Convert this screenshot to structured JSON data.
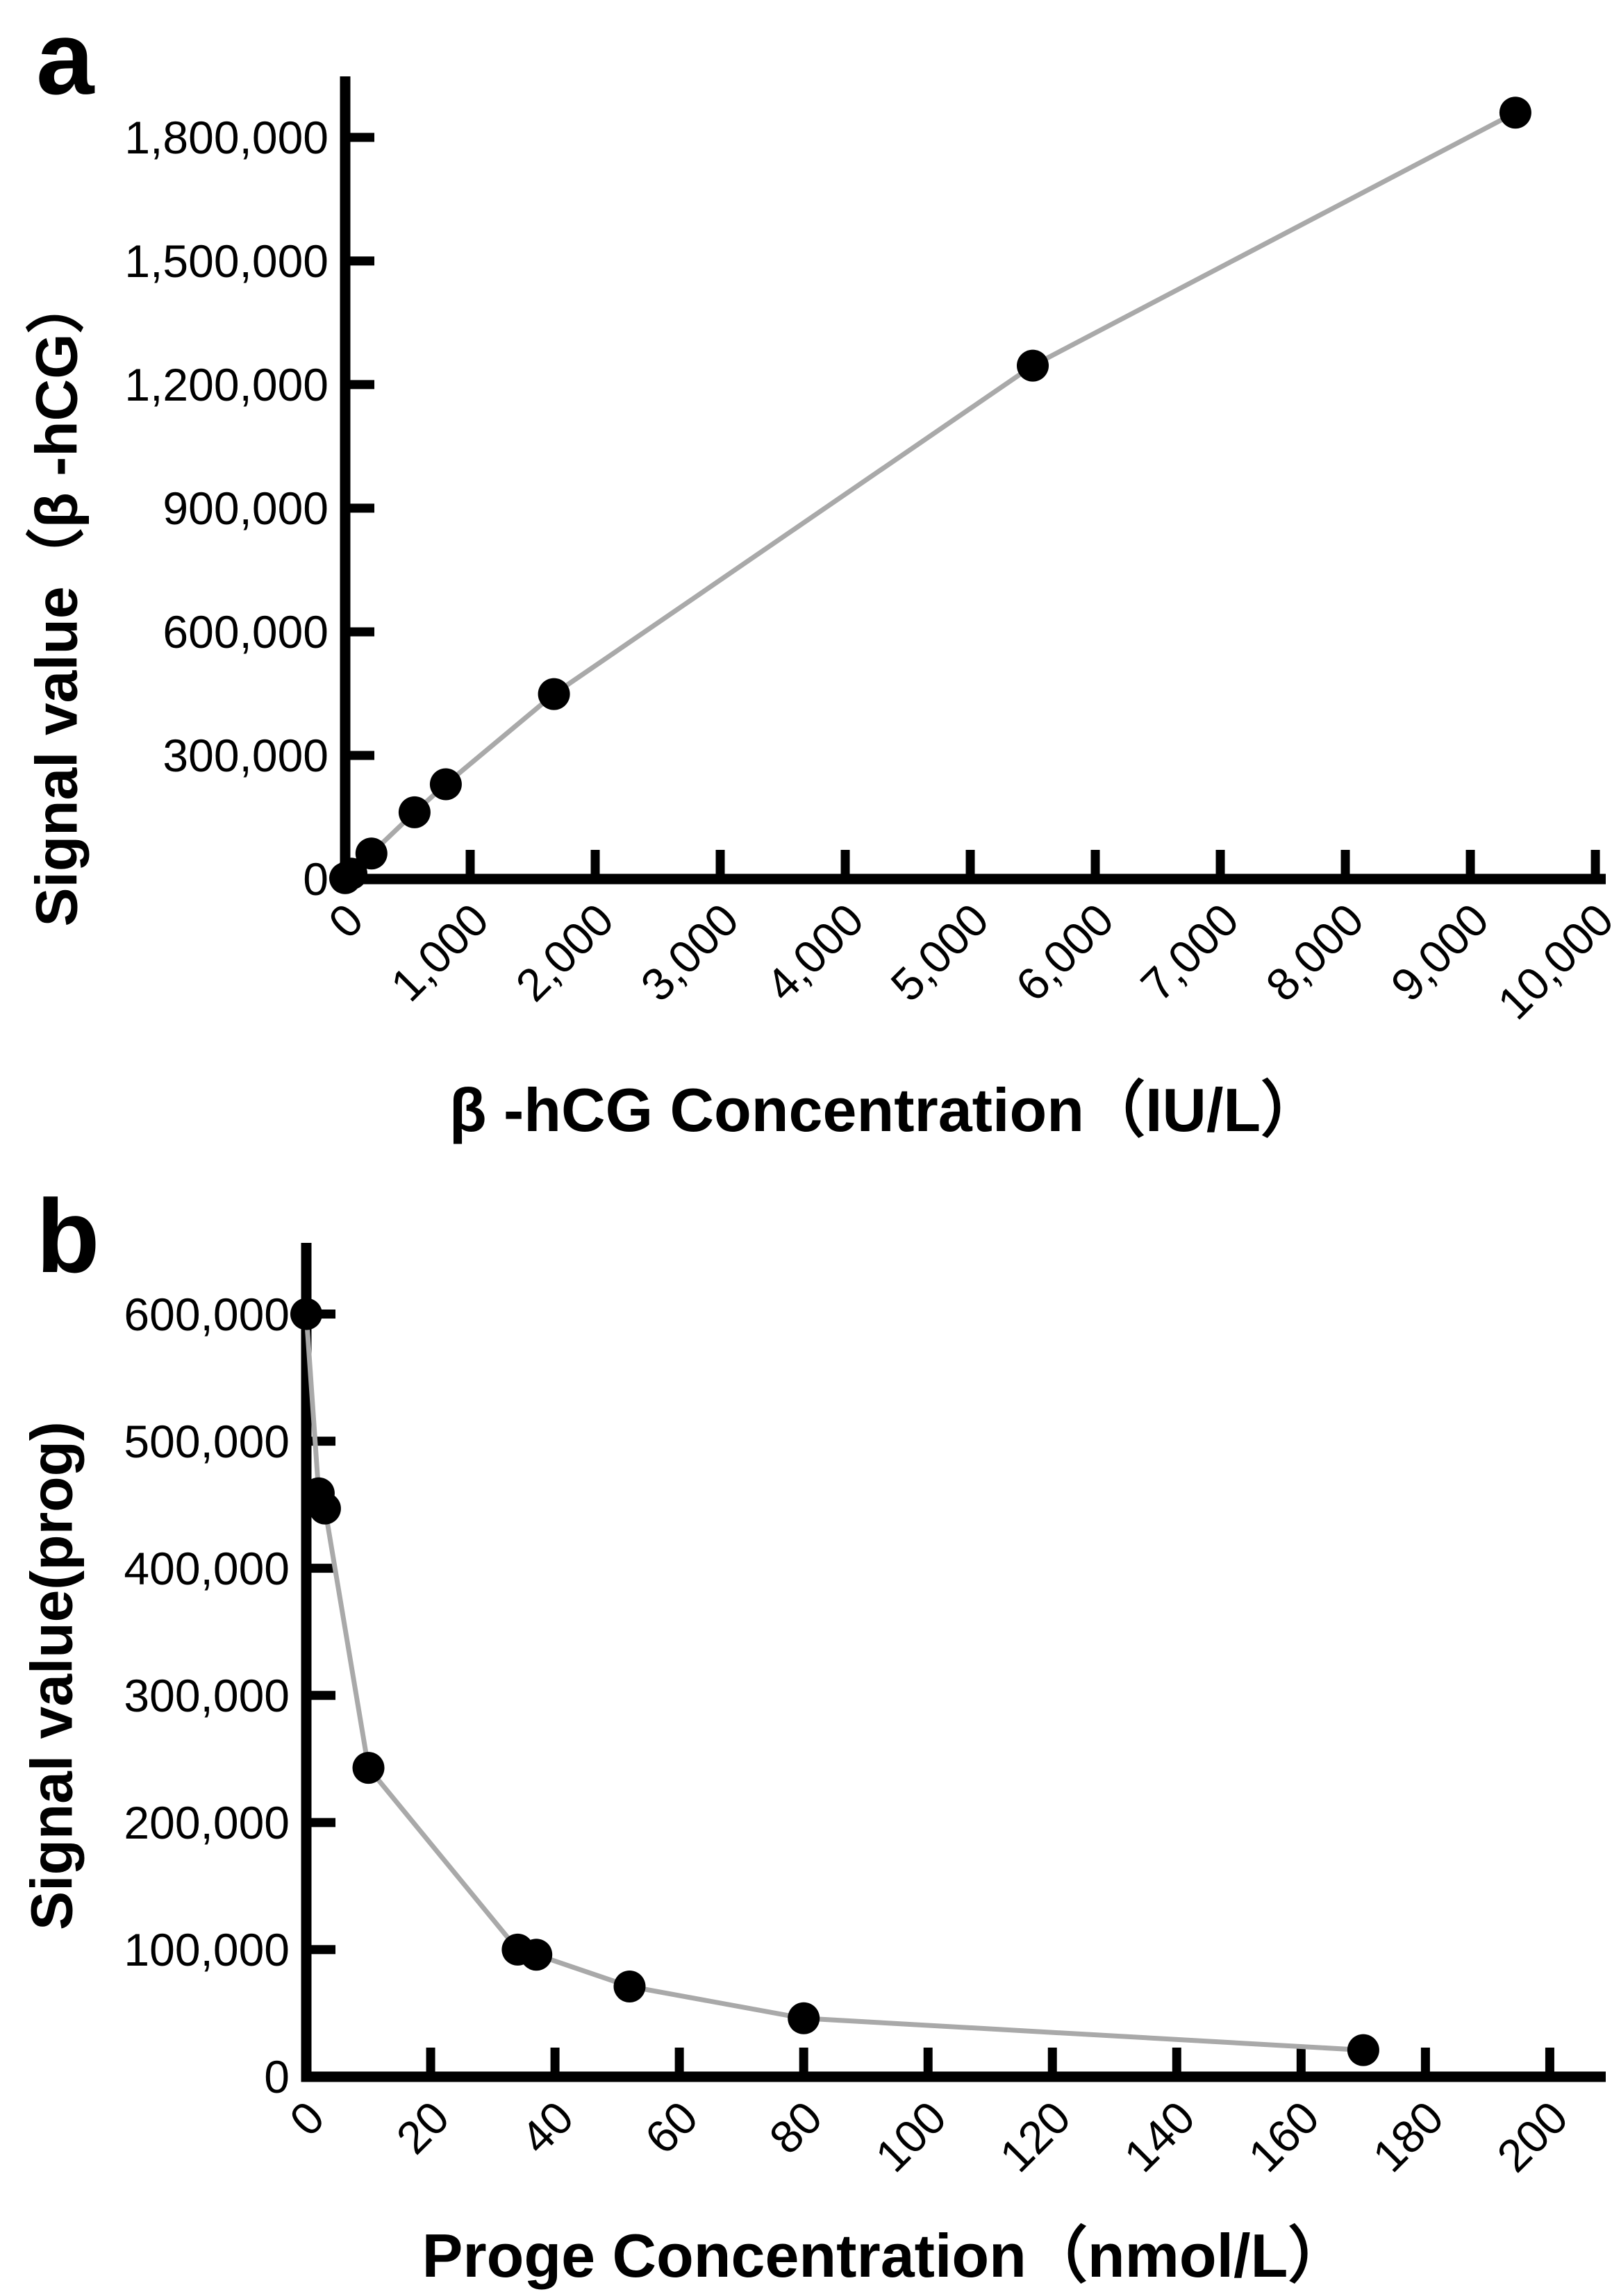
{
  "figure": {
    "background_color": "#ffffff",
    "axis_color": "#000000",
    "marker_color": "#000000",
    "line_color": "#a9a9a9"
  },
  "chart_data": [
    {
      "type": "scatter",
      "panel_label": "a",
      "x_title": "β -hCG Concentration（IU/L）",
      "y_title": "Signal value（β -hCG）",
      "xlim": [
        0,
        10083
      ],
      "ylim": [
        0,
        1948000
      ],
      "grid": false,
      "legend": "none",
      "x_ticks": [
        {
          "value": 0,
          "label": "0"
        },
        {
          "value": 1000,
          "label": "1,000"
        },
        {
          "value": 2000,
          "label": "2,000"
        },
        {
          "value": 3000,
          "label": "3,000"
        },
        {
          "value": 4000,
          "label": "4,000"
        },
        {
          "value": 5000,
          "label": "5,000"
        },
        {
          "value": 6000,
          "label": "6,000"
        },
        {
          "value": 7000,
          "label": "7,000"
        },
        {
          "value": 8000,
          "label": "8,000"
        },
        {
          "value": 9000,
          "label": "9,000"
        },
        {
          "value": 10000,
          "label": "10,000"
        }
      ],
      "y_ticks": [
        {
          "value": 0,
          "label": "0"
        },
        {
          "value": 300000,
          "label": "300,000"
        },
        {
          "value": 600000,
          "label": "600,000"
        },
        {
          "value": 900000,
          "label": "900,000"
        },
        {
          "value": 1200000,
          "label": "1,200,000"
        },
        {
          "value": 1500000,
          "label": "1,500,000"
        },
        {
          "value": 1800000,
          "label": "1,800,000"
        }
      ],
      "points": [
        {
          "x": 0,
          "y": 2000
        },
        {
          "x": 50,
          "y": 13000
        },
        {
          "x": 210,
          "y": 62000
        },
        {
          "x": 555,
          "y": 162000
        },
        {
          "x": 805,
          "y": 230000
        },
        {
          "x": 1670,
          "y": 449000
        },
        {
          "x": 5500,
          "y": 1246000
        },
        {
          "x": 9360,
          "y": 1860000
        }
      ]
    },
    {
      "type": "scatter",
      "panel_label": "b",
      "x_title": "Proge Concentration（nmol/L）",
      "y_title": "Signal value(prog)",
      "xlim": [
        0,
        209
      ],
      "ylim": [
        0,
        656000
      ],
      "grid": false,
      "legend": "none",
      "x_ticks": [
        {
          "value": 0,
          "label": "0"
        },
        {
          "value": 20,
          "label": "20"
        },
        {
          "value": 40,
          "label": "40"
        },
        {
          "value": 60,
          "label": "60"
        },
        {
          "value": 80,
          "label": "80"
        },
        {
          "value": 100,
          "label": "100"
        },
        {
          "value": 120,
          "label": "120"
        },
        {
          "value": 140,
          "label": "140"
        },
        {
          "value": 160,
          "label": "160"
        },
        {
          "value": 180,
          "label": "180"
        },
        {
          "value": 200,
          "label": "200"
        }
      ],
      "y_ticks": [
        {
          "value": 0,
          "label": "0"
        },
        {
          "value": 100000,
          "label": "100,000"
        },
        {
          "value": 200000,
          "label": "200,000"
        },
        {
          "value": 300000,
          "label": "300,000"
        },
        {
          "value": 400000,
          "label": "400,000"
        },
        {
          "value": 500000,
          "label": "500,000"
        },
        {
          "value": 600000,
          "label": "600,000"
        }
      ],
      "points": [
        {
          "x": 0,
          "y": 600000
        },
        {
          "x": 2,
          "y": 459000
        },
        {
          "x": 3,
          "y": 447000
        },
        {
          "x": 10,
          "y": 243000
        },
        {
          "x": 34,
          "y": 100000
        },
        {
          "x": 37,
          "y": 96000
        },
        {
          "x": 52,
          "y": 71000
        },
        {
          "x": 80,
          "y": 46000
        },
        {
          "x": 170,
          "y": 21000
        }
      ]
    }
  ]
}
